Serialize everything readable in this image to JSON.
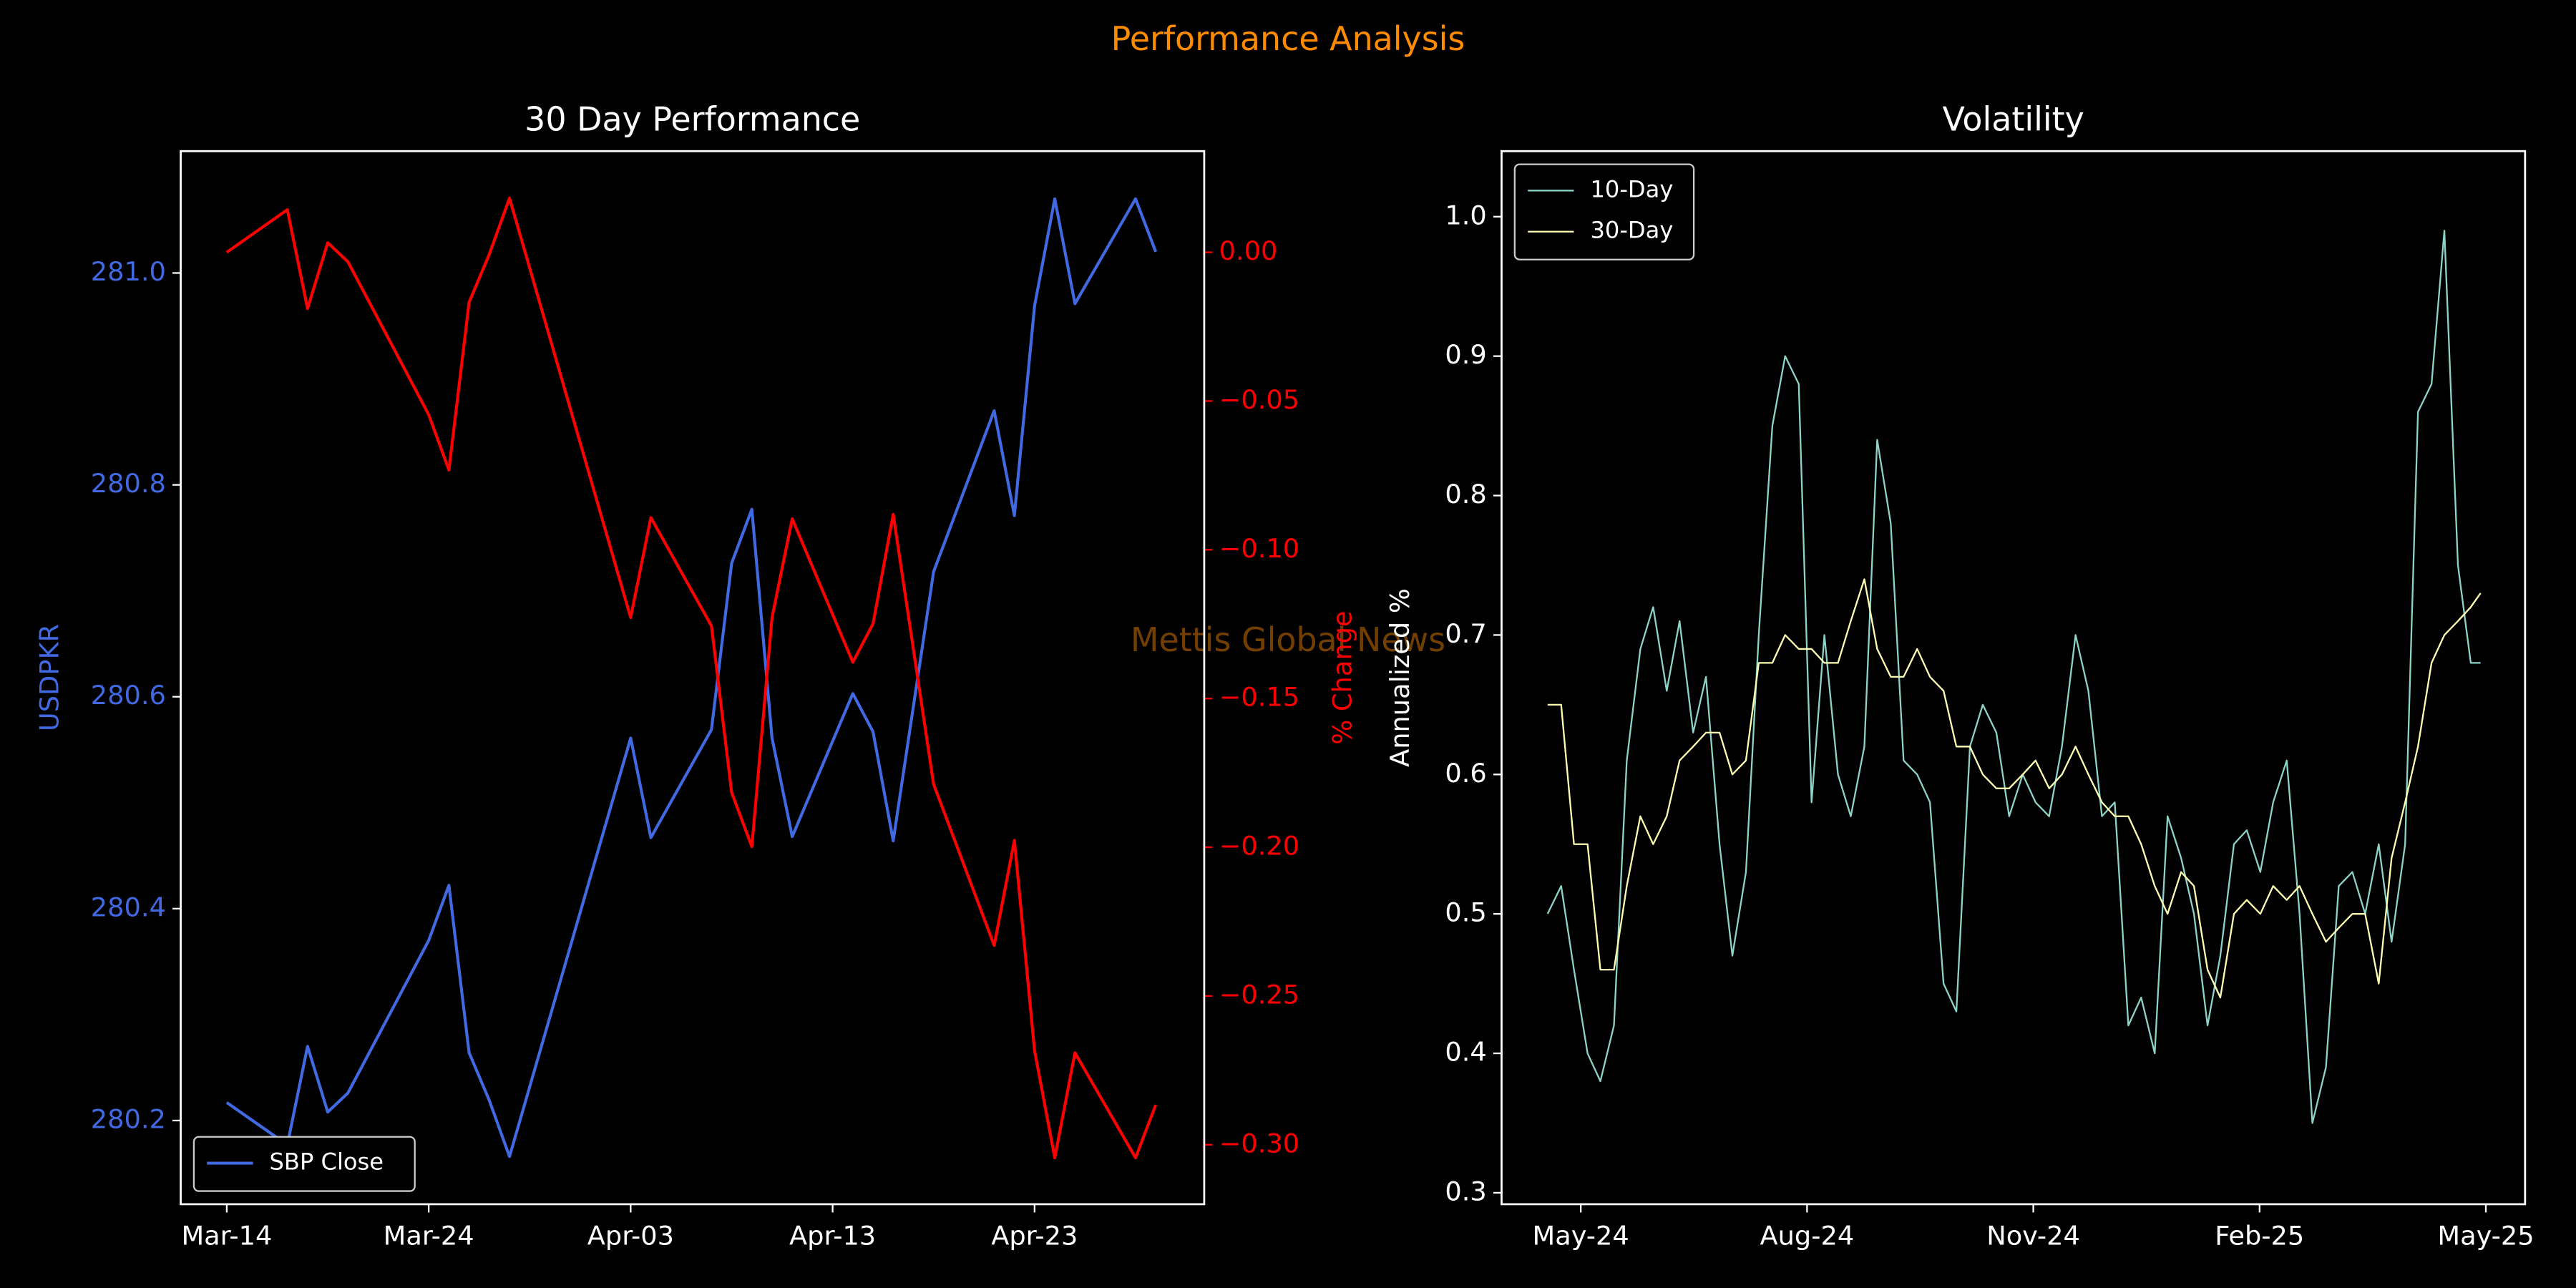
{
  "title": "Performance Analysis",
  "watermark": "Mettis Global News",
  "chart_data": [
    {
      "type": "line",
      "title": "30 Day Performance",
      "ylabel": "USDPKR",
      "y2label": "% Change",
      "x": [
        0,
        3,
        4,
        5,
        6,
        10,
        11,
        12,
        13,
        14,
        20,
        21,
        24,
        25,
        26,
        27,
        28,
        31,
        32,
        33,
        35,
        38,
        39,
        40,
        41,
        42,
        45,
        46
      ],
      "xlim": [
        -2.28,
        48.4
      ],
      "xticks": [
        {
          "value": 0,
          "label": "Mar-14"
        },
        {
          "value": 10,
          "label": "Mar-24"
        },
        {
          "value": 20,
          "label": "Apr-03"
        },
        {
          "value": 30,
          "label": "Apr-13"
        },
        {
          "value": 40,
          "label": "Apr-23"
        }
      ],
      "ylim": [
        280.121,
        281.115
      ],
      "yticks": [
        280.2,
        280.4,
        280.6,
        280.8,
        {
          "value": 281,
          "label": "281.0"
        }
      ],
      "y2lim": [
        -0.32,
        0.034
      ],
      "y2ticks": [
        {
          "value": 0,
          "label": "0.00"
        },
        {
          "value": -0.05,
          "label": "−0.05"
        },
        {
          "value": -0.1,
          "label": "−0.10"
        },
        {
          "value": -0.15,
          "label": "−0.15"
        },
        {
          "value": -0.2,
          "label": "−0.20"
        },
        {
          "value": -0.25,
          "label": "−0.25"
        },
        {
          "value": -0.3,
          "label": "−0.30"
        }
      ],
      "legend": "lower left",
      "series": [
        {
          "name": "SBP Close",
          "color": "#4169e1",
          "values": [
            280.217,
            280.177,
            280.27,
            280.208,
            280.226,
            280.37,
            280.422,
            280.264,
            280.219,
            280.166,
            280.561,
            280.467,
            280.569,
            280.726,
            280.777,
            280.561,
            280.468,
            280.603,
            280.567,
            280.464,
            280.718,
            280.87,
            280.771,
            280.969,
            281.07,
            280.971,
            281.07,
            281.02
          ]
        },
        {
          "color": "#ff0000",
          "axis": "y2",
          "values": [
            0,
            0.0143,
            -0.0189,
            0.0032,
            -0.0032,
            -0.0546,
            -0.0732,
            -0.0168,
            -0.0007,
            0.0182,
            -0.1228,
            -0.0892,
            -0.1256,
            -0.1816,
            -0.1998,
            -0.1228,
            -0.0896,
            -0.1378,
            -0.1249,
            -0.0881,
            -0.1788,
            -0.233,
            -0.1977,
            -0.2684,
            -0.3044,
            -0.2691,
            -0.3044,
            -0.2866
          ]
        }
      ]
    },
    {
      "type": "line",
      "title": "Volatility",
      "ylabel": "Annualized %",
      "x": [
        -0.44,
        -0.26,
        -0.09,
        0.09,
        0.26,
        0.44,
        0.61,
        0.79,
        0.96,
        1.14,
        1.31,
        1.49,
        1.66,
        1.84,
        2.01,
        2.19,
        2.36,
        2.54,
        2.71,
        2.89,
        3.06,
        3.23,
        3.41,
        3.58,
        3.76,
        3.93,
        4.11,
        4.28,
        4.46,
        4.63,
        4.81,
        4.98,
        5.16,
        5.33,
        5.51,
        5.68,
        5.86,
        6.03,
        6.21,
        6.38,
        6.56,
        6.73,
        6.91,
        7.08,
        7.26,
        7.43,
        7.61,
        7.78,
        7.96,
        8.13,
        8.31,
        8.48,
        8.66,
        8.83,
        9.01,
        9.18,
        9.36,
        9.53,
        9.7,
        9.88,
        10.05,
        10.23,
        10.4,
        10.58,
        10.75,
        10.93,
        11.1,
        11.28,
        11.45,
        11.63,
        11.8,
        11.93
      ],
      "xlim": [
        -1.05,
        12.52
      ],
      "xticks": [
        {
          "value": 0,
          "label": "May-24"
        },
        {
          "value": 3,
          "label": "Aug-24"
        },
        {
          "value": 6,
          "label": "Nov-24"
        },
        {
          "value": 9,
          "label": "Feb-25"
        },
        {
          "value": 12,
          "label": "May-25"
        }
      ],
      "ylim": [
        0.2918,
        1.047
      ],
      "yticks": [
        0.3,
        0.4,
        0.5,
        0.6,
        0.7,
        0.8,
        0.9,
        {
          "value": 1,
          "label": "1.0"
        }
      ],
      "legend": "upper left",
      "series": [
        {
          "name": "10-Day",
          "color": "#8dd3c7",
          "values": [
            0.5,
            0.52,
            0.46,
            0.4,
            0.38,
            0.42,
            0.61,
            0.69,
            0.72,
            0.66,
            0.71,
            0.63,
            0.67,
            0.55,
            0.47,
            0.53,
            0.7,
            0.85,
            0.9,
            0.88,
            0.58,
            0.7,
            0.6,
            0.57,
            0.62,
            0.84,
            0.78,
            0.61,
            0.6,
            0.58,
            0.45,
            0.43,
            0.62,
            0.65,
            0.63,
            0.57,
            0.6,
            0.58,
            0.57,
            0.62,
            0.7,
            0.66,
            0.57,
            0.58,
            0.42,
            0.44,
            0.4,
            0.57,
            0.54,
            0.5,
            0.42,
            0.47,
            0.55,
            0.56,
            0.53,
            0.58,
            0.61,
            0.5,
            0.35,
            0.39,
            0.52,
            0.53,
            0.5,
            0.55,
            0.48,
            0.55,
            0.86,
            0.88,
            0.99,
            0.75,
            0.68,
            0.68
          ]
        },
        {
          "name": "30-Day",
          "color": "#ffffb3",
          "values": [
            0.65,
            0.65,
            0.55,
            0.55,
            0.46,
            0.46,
            0.52,
            0.57,
            0.55,
            0.57,
            0.61,
            0.62,
            0.63,
            0.63,
            0.6,
            0.61,
            0.68,
            0.68,
            0.7,
            0.69,
            0.69,
            0.68,
            0.68,
            0.71,
            0.74,
            0.69,
            0.67,
            0.67,
            0.69,
            0.67,
            0.66,
            0.62,
            0.62,
            0.6,
            0.59,
            0.59,
            0.6,
            0.61,
            0.59,
            0.6,
            0.62,
            0.6,
            0.58,
            0.57,
            0.57,
            0.55,
            0.52,
            0.5,
            0.53,
            0.52,
            0.46,
            0.44,
            0.5,
            0.51,
            0.5,
            0.52,
            0.51,
            0.52,
            0.5,
            0.48,
            0.49,
            0.5,
            0.5,
            0.45,
            0.54,
            0.58,
            0.62,
            0.68,
            0.7,
            0.71,
            0.72,
            0.73
          ]
        }
      ]
    }
  ]
}
